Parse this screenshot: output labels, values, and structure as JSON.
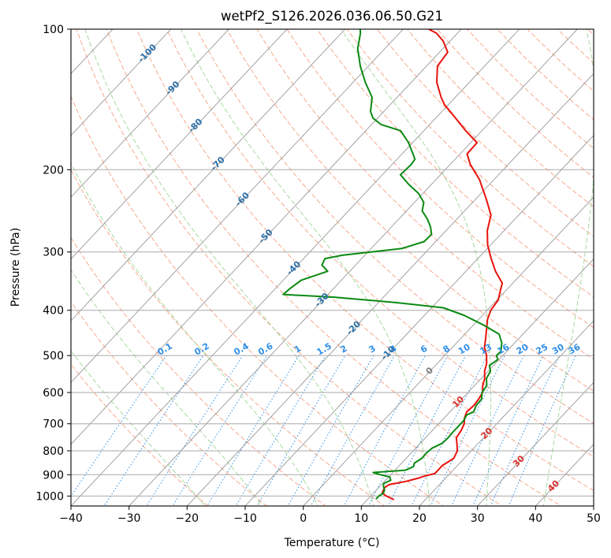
{
  "chart_data": {
    "type": "line",
    "subtype": "skew-t log-p diagram",
    "title": "wetPf2_S126.2026.036.06.50.G21",
    "xlabel": "Temperature (°C)",
    "ylabel": "Pressure (hPa)",
    "xlim": [
      -40,
      50
    ],
    "ylim": [
      1050,
      100
    ],
    "y_scale": "log",
    "grid": true,
    "x_ticks": [
      "−40",
      "−30",
      "−20",
      "−10",
      "0",
      "10",
      "20",
      "30",
      "40",
      "50"
    ],
    "y_ticks": [
      "100",
      "200",
      "300",
      "400",
      "500",
      "600",
      "700",
      "800",
      "900",
      "1000"
    ],
    "colors": {
      "temperature": "#e8120c",
      "dewpoint": "#0a8a12",
      "dry_adiabat": "#f7a98d",
      "moist_adiabat": "#a8d8a0",
      "mixing_ratio": "#2f8fe8",
      "isotherm": "#999999",
      "isotherm_label": "#2b6fa8",
      "warm_isotherm_label": "#d7302a",
      "zero_isotherm_label": "#808080",
      "neutral_line": "#d8c9a8"
    },
    "series": [
      {
        "key": "temperature",
        "pressure": [
          1018,
          1000,
          985,
          960,
          945,
          930,
          915,
          905,
          895,
          880,
          860,
          830,
          800,
          775,
          750,
          725,
          700,
          680,
          660,
          640,
          620,
          600,
          580,
          560,
          540,
          520,
          500,
          480,
          460,
          440,
          420,
          400,
          380,
          365,
          350,
          330,
          310,
          290,
          270,
          250,
          230,
          210,
          195,
          185,
          175,
          165,
          155,
          145,
          140,
          130,
          120,
          112,
          106,
          102,
          100
        ],
        "values": [
          14.6,
          12.7,
          11.5,
          11.0,
          11.3,
          13.7,
          15.3,
          16.1,
          17.4,
          17.4,
          17.4,
          18.2,
          17.6,
          16.5,
          15.3,
          15.0,
          14.4,
          13.5,
          12.9,
          13.1,
          12.9,
          12.5,
          11.4,
          10.6,
          9.4,
          8.5,
          7.2,
          5.5,
          4.3,
          3.0,
          1.6,
          0.6,
          0.2,
          -0.8,
          -1.8,
          -4.9,
          -7.7,
          -10.5,
          -12.9,
          -14.8,
          -18.4,
          -22.5,
          -26.5,
          -28.8,
          -28.9,
          -32.8,
          -36.6,
          -40.7,
          -42.4,
          -45.6,
          -48.1,
          -48.6,
          -51.2,
          -53.6,
          -55.6
        ]
      },
      {
        "key": "dewpoint",
        "pressure": [
          1015,
          1000,
          985,
          970,
          955,
          940,
          925,
          910,
          900,
          890,
          880,
          865,
          850,
          830,
          810,
          790,
          770,
          750,
          730,
          710,
          690,
          670,
          660,
          640,
          620,
          600,
          580,
          560,
          540,
          525,
          510,
          500,
          490,
          470,
          450,
          430,
          410,
          395,
          385,
          375,
          370,
          360,
          345,
          330,
          320,
          310,
          305,
          295,
          285,
          275,
          265,
          255,
          245,
          235,
          225,
          215,
          205,
          195,
          190,
          185,
          180,
          175,
          165,
          160,
          155,
          150,
          140,
          130,
          120,
          110,
          102,
          100
        ],
        "values": [
          11.4,
          11.4,
          11.7,
          11.4,
          10.7,
          10.2,
          10.9,
          10.2,
          8.2,
          6.6,
          11.8,
          12.6,
          12.2,
          12.7,
          12.6,
          12.8,
          13.8,
          13.9,
          13.8,
          13.8,
          13.8,
          13.4,
          14.1,
          13.5,
          13.4,
          12.4,
          12.1,
          10.9,
          10.4,
          9.3,
          9.8,
          8.9,
          9.0,
          7.8,
          5.9,
          1.7,
          -3.2,
          -8.0,
          -17.0,
          -28.4,
          -37.7,
          -37.5,
          -36.9,
          -33.8,
          -35.8,
          -36.3,
          -33.9,
          -24.7,
          -22.0,
          -21.9,
          -23.3,
          -25.1,
          -27.3,
          -28.4,
          -30.7,
          -33.9,
          -36.9,
          -36.7,
          -36.9,
          -38.1,
          -39.4,
          -40.7,
          -44.0,
          -48.4,
          -50.8,
          -52.3,
          -54.3,
          -57.9,
          -61.4,
          -64.7,
          -66.7,
          -67.4
        ]
      }
    ],
    "isotherm_labels": [
      "-100",
      "-90",
      "-80",
      "-70",
      "-60",
      "-50",
      "-40",
      "-30",
      "-20",
      "-10",
      "0",
      "10",
      "20",
      "30",
      "40"
    ],
    "mixing_ratio_values": [
      0.1,
      0.2,
      0.4,
      0.6,
      1,
      1.5,
      2,
      3,
      4,
      6,
      8,
      10,
      13,
      16,
      20,
      25,
      30,
      36
    ],
    "mixing_ratio_labels": [
      "0.1",
      "0.2",
      "0.4",
      "0.6",
      "1",
      "1.5",
      "2",
      "3",
      "4",
      "6",
      "8",
      "10",
      "13",
      "16",
      "20",
      "25",
      "30",
      "36"
    ]
  }
}
